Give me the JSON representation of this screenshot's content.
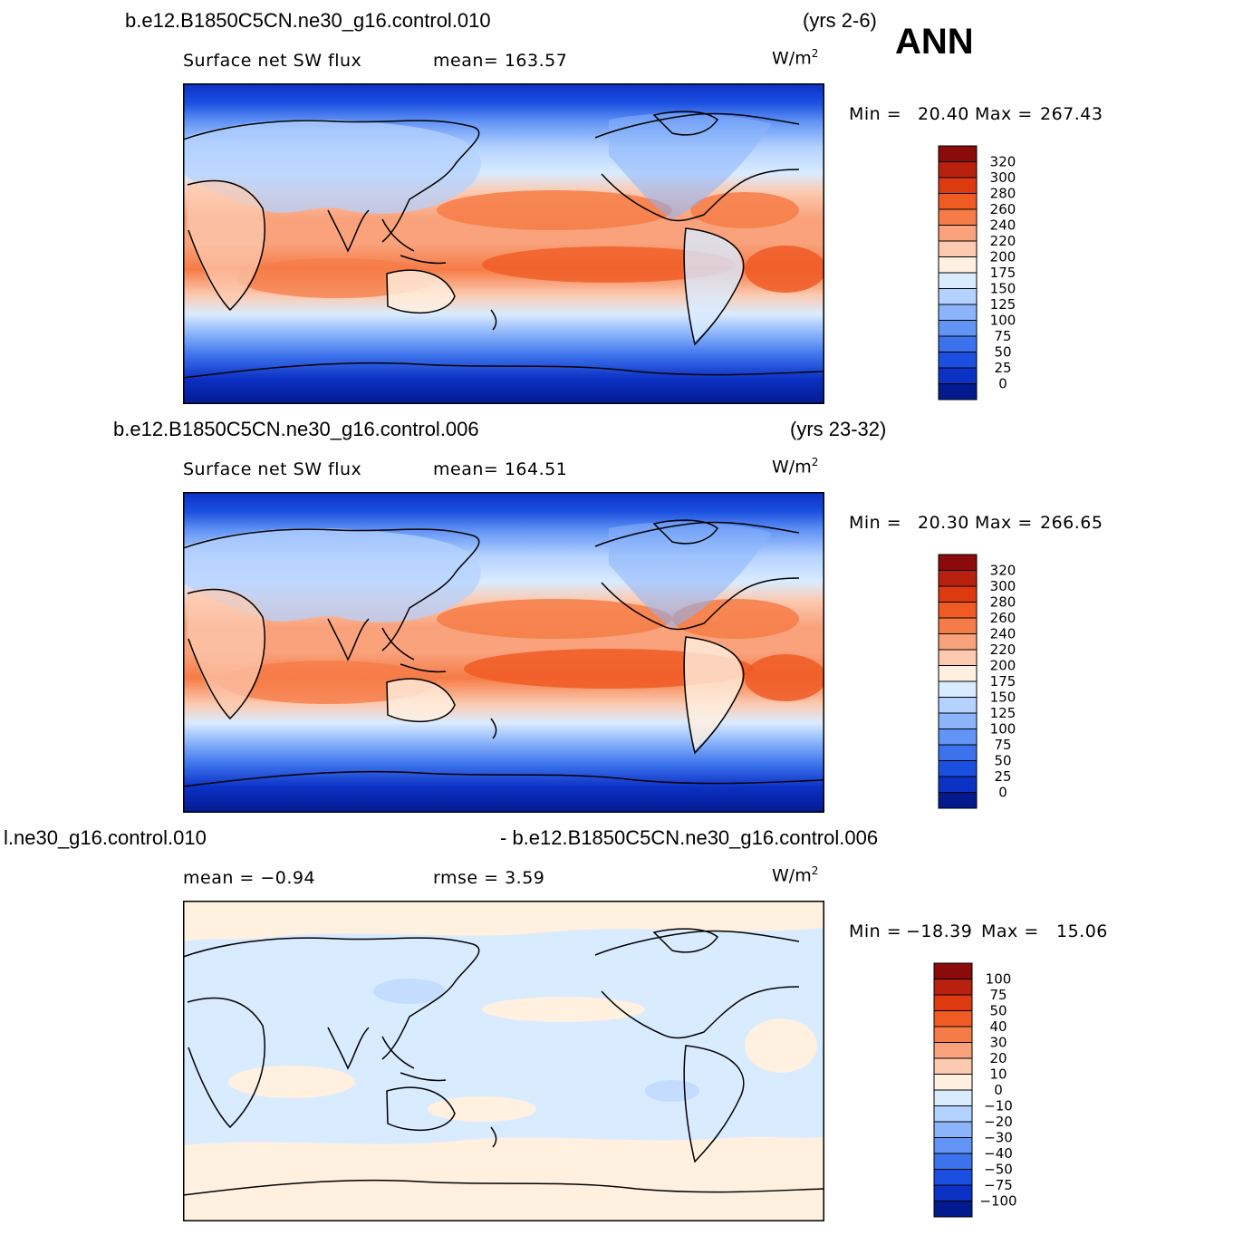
{
  "season": "ANN",
  "panels": [
    {
      "id": "top",
      "case_title": "b.e12.B1850C5CN.ne30_g16.control.010",
      "years": "(yrs 2-6)",
      "left_label": "Surface  net  SW  flux",
      "stat_label": "mean=  163.57",
      "units": "W/m",
      "units_sup": "2",
      "min_label": "Min  =",
      "min_value": "20.40",
      "max_label": "Max  =",
      "max_value": "267.43",
      "colorbar_levels": [
        "320",
        "300",
        "280",
        "260",
        "240",
        "220",
        "200",
        "175",
        "150",
        "125",
        "100",
        "75",
        "50",
        "25",
        "0"
      ]
    },
    {
      "id": "middle",
      "case_title": "b.e12.B1850C5CN.ne30_g16.control.006",
      "years": "(yrs 23-32)",
      "left_label": "Surface  net  SW  flux",
      "stat_label": "mean=  164.51",
      "units": "W/m",
      "units_sup": "2",
      "min_label": "Min  =",
      "min_value": "20.30",
      "max_label": "Max  =",
      "max_value": "266.65",
      "colorbar_levels": [
        "320",
        "300",
        "280",
        "260",
        "240",
        "220",
        "200",
        "175",
        "150",
        "125",
        "100",
        "75",
        "50",
        "25",
        "0"
      ]
    },
    {
      "id": "bottom",
      "case_title": "l.ne30_g16.control.010",
      "case_title_right": "- b.e12.B1850C5CN.ne30_g16.control.006",
      "left_label": "mean  =    −0.94",
      "stat_label": "rmse  =     3.59",
      "units": "W/m",
      "units_sup": "2",
      "min_label": "Min  =",
      "min_value": "−18.39",
      "max_label": "Max  =",
      "max_value": "15.06",
      "colorbar_levels": [
        "100",
        "75",
        "50",
        "40",
        "30",
        "20",
        "10",
        "0",
        "−10",
        "−20",
        "−30",
        "−40",
        "−50",
        "−75",
        "−100"
      ]
    }
  ],
  "colors": {
    "field_scale": [
      "#8b0a0a",
      "#b8210e",
      "#de3a10",
      "#f05b24",
      "#f67c47",
      "#f9a27c",
      "#fccab0",
      "#fff0e0",
      "#d9ebff",
      "#b4d2ff",
      "#8bb4fb",
      "#6294f5",
      "#3c72ec",
      "#1b4fdf",
      "#0c31c5",
      "#031a8f"
    ],
    "diff_scale": [
      "#8b0a0a",
      "#b8210e",
      "#de3a10",
      "#f05b24",
      "#f67c47",
      "#f9a27c",
      "#fccab0",
      "#fff0e0",
      "#d9ebff",
      "#b4d2ff",
      "#8bb4fb",
      "#6294f5",
      "#3c72ec",
      "#1b4fdf",
      "#0c31c5",
      "#031a8f"
    ],
    "coastline": "#000000"
  }
}
